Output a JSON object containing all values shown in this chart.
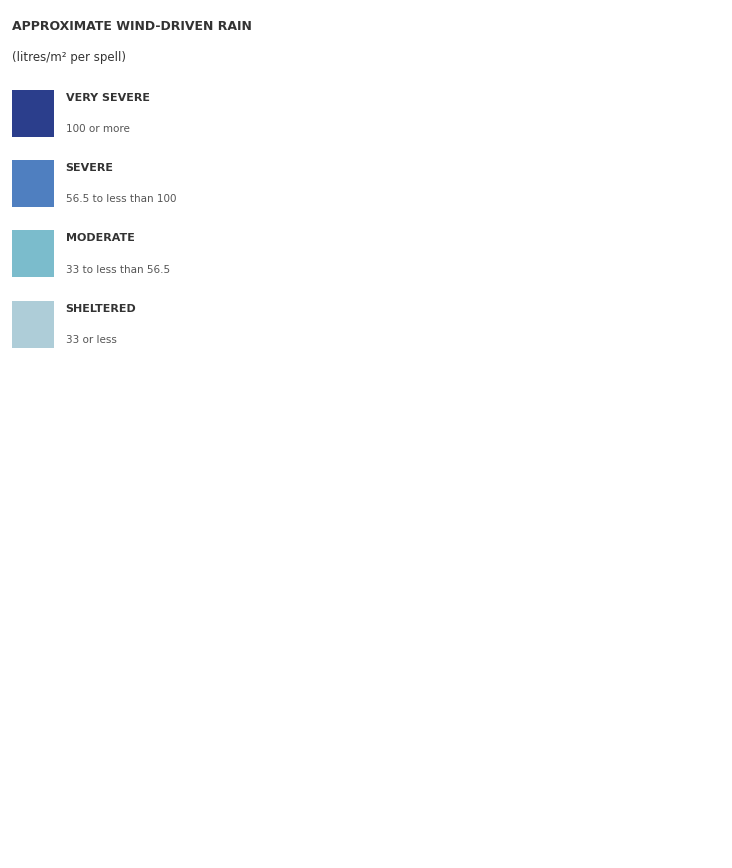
{
  "title_line1": "APPROXIMATE WIND-DRIVEN RAIN",
  "title_line2": "(litres/m² per spell)",
  "legend_entries": [
    {
      "label_bold": "VERY SEVERE",
      "label_desc": "100 or more",
      "color": "#2B3E8C"
    },
    {
      "label_bold": "SEVERE",
      "label_desc": "56.5 to less than 100",
      "color": "#4F7FC0"
    },
    {
      "label_bold": "MODERATE",
      "label_desc": "33 to less than 56.5",
      "color": "#7BBCCC"
    },
    {
      "label_bold": "SHELTERED",
      "label_desc": "33 or less",
      "color": "#AECDD8"
    }
  ],
  "background_color": "#FFFFFF",
  "fig_width": 7.32,
  "fig_height": 8.68
}
